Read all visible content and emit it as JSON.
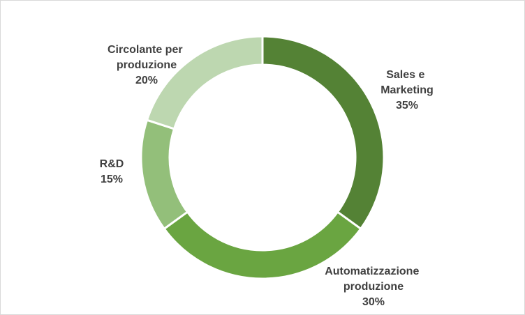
{
  "chart_data": {
    "type": "donut",
    "categories": [
      "Sales e Marketing",
      "Automatizzazione produzione",
      "R&D",
      "Circolante per produzione"
    ],
    "values": [
      35,
      30,
      15,
      20
    ],
    "value_labels": [
      "35%",
      "30%",
      "15%",
      "20%"
    ],
    "colors": [
      "#548235",
      "#6aa541",
      "#93bf7a",
      "#bdd7b0"
    ]
  }
}
